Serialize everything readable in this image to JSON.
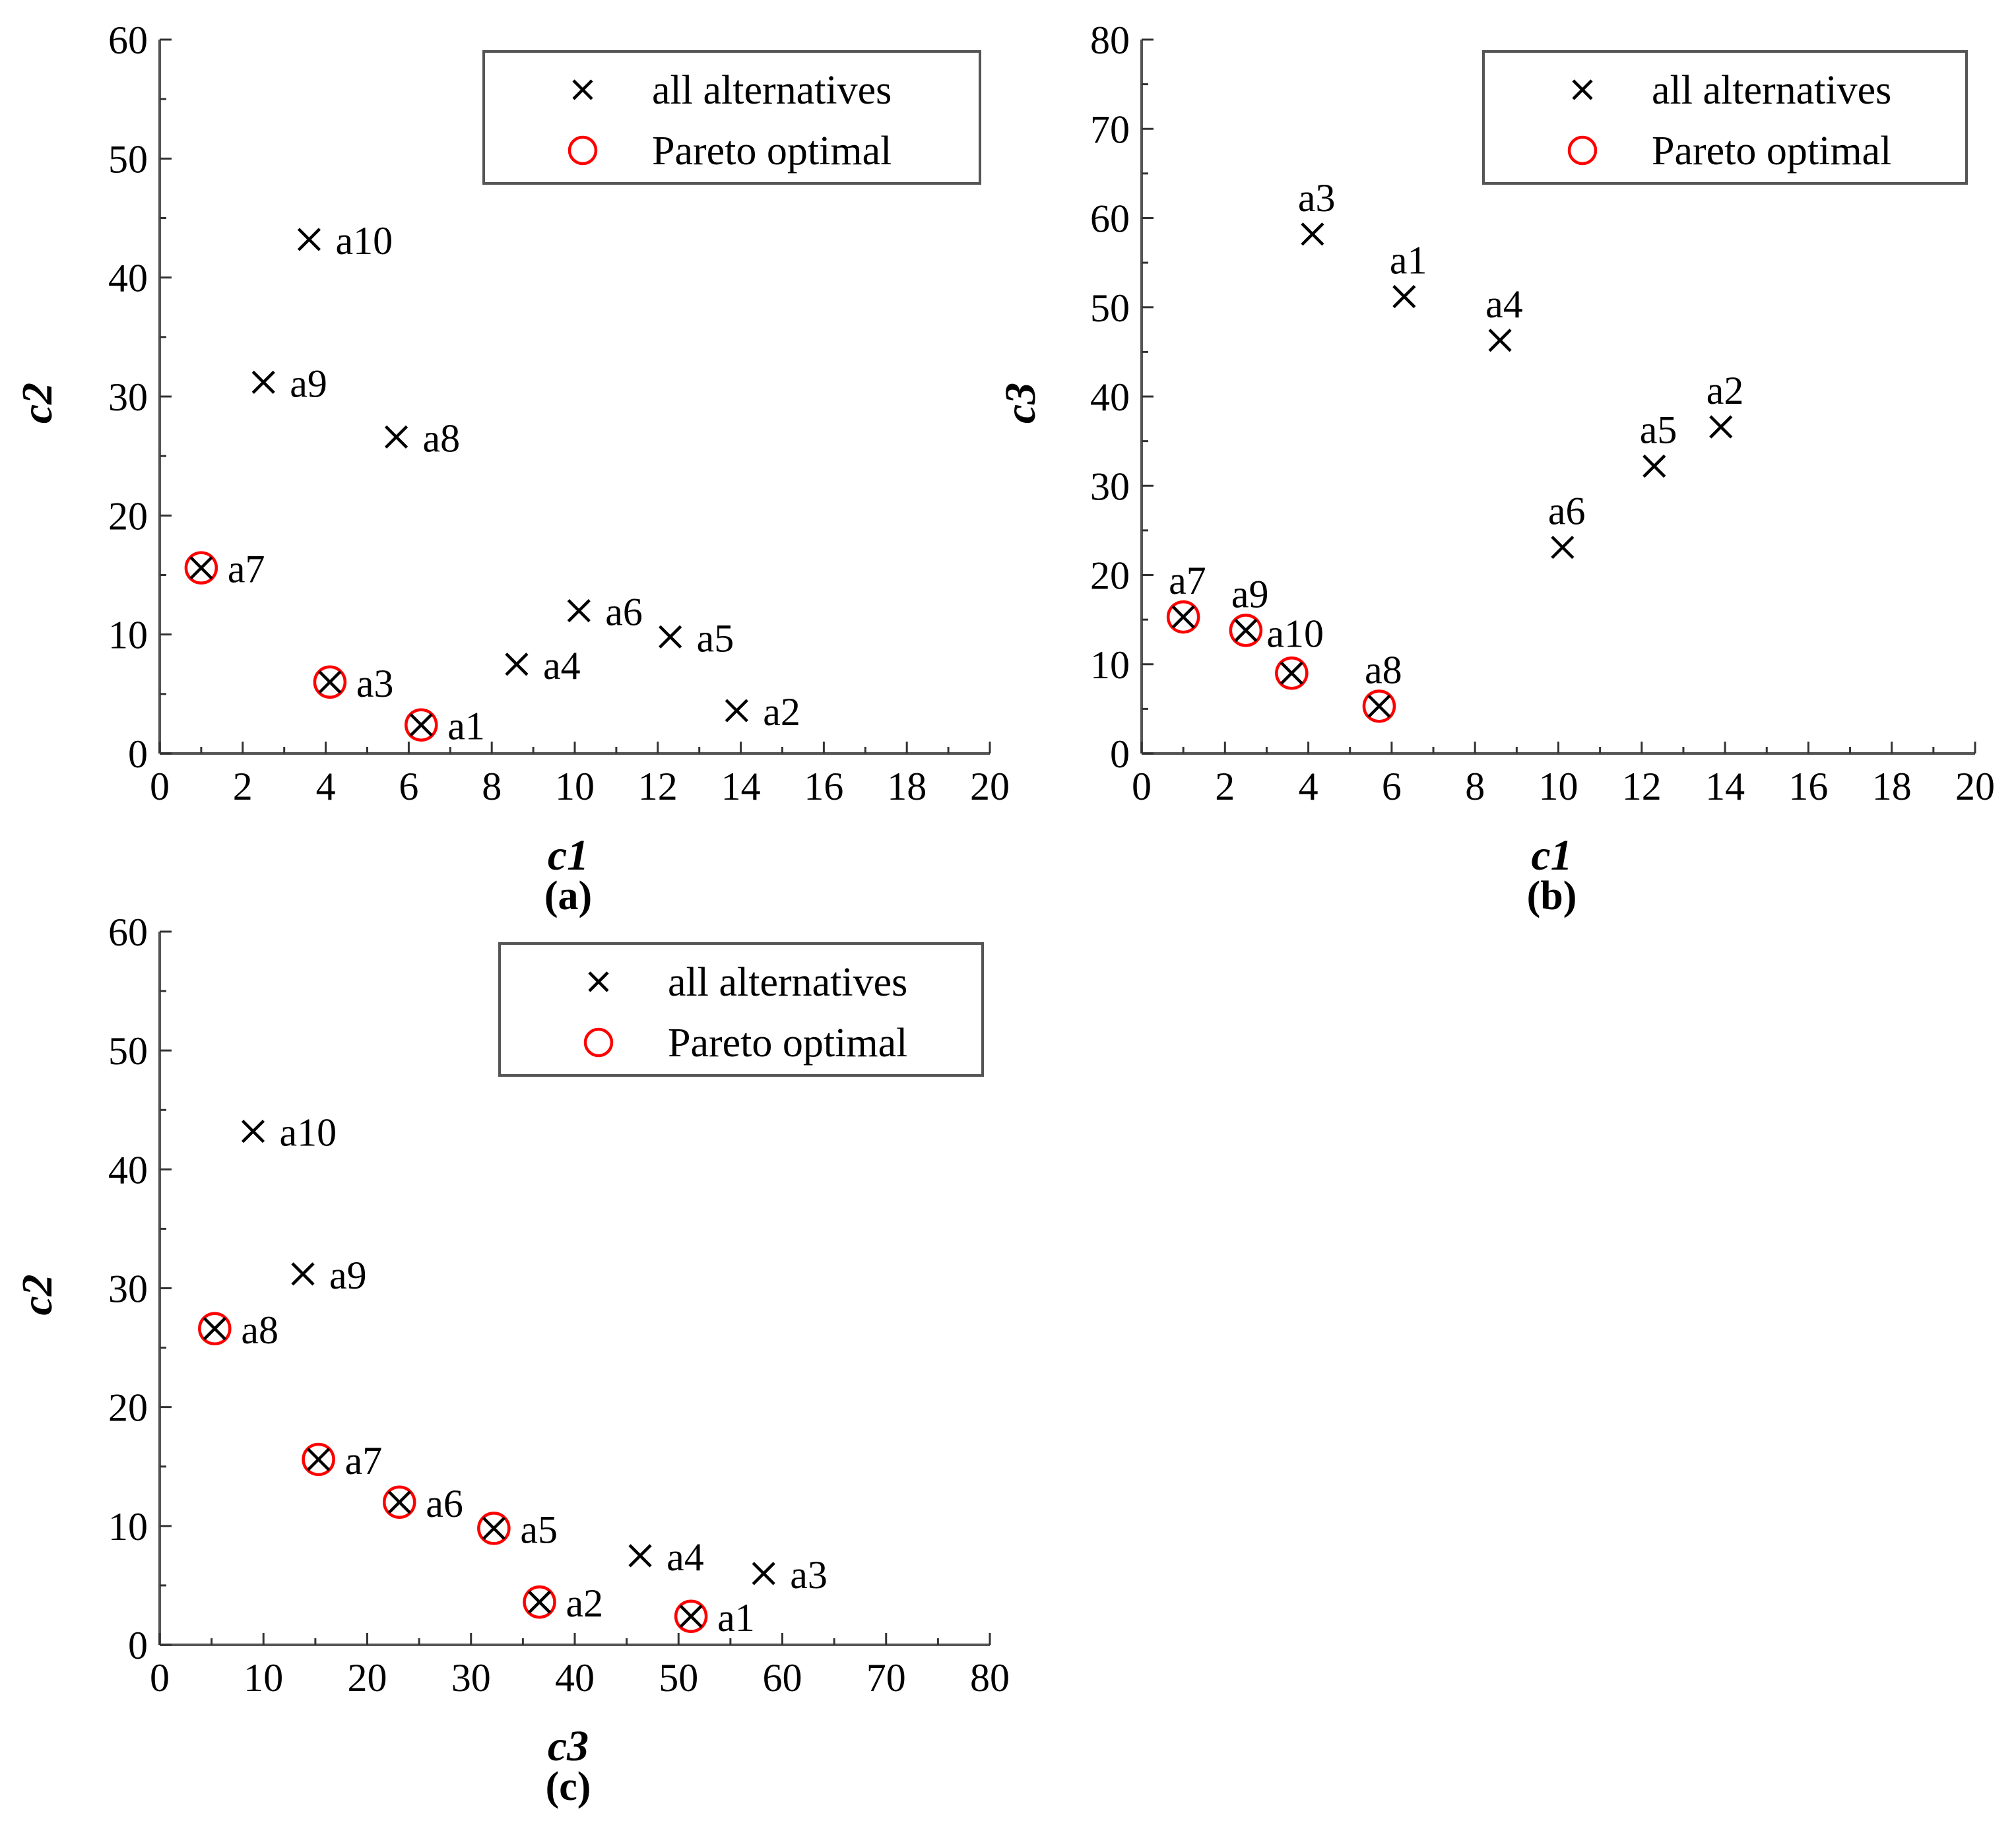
{
  "colors": {
    "cross": "#000000",
    "pareto": "#ff0000",
    "axis": "#555555"
  },
  "chart_data": [
    {
      "type": "scatter",
      "panel_label": "(a)",
      "xlabel": "c1",
      "ylabel": "c2",
      "xlim": [
        0,
        20
      ],
      "ylim": [
        0,
        60
      ],
      "xticks": [
        "0",
        "2",
        "4",
        "6",
        "8",
        "10",
        "12",
        "14",
        "16",
        "18",
        "20"
      ],
      "yticks": [
        "0",
        "10",
        "20",
        "30",
        "40",
        "50",
        "60"
      ],
      "legend": {
        "position": "top-right",
        "entries": [
          "all alternatives",
          "Pareto optimal"
        ]
      },
      "series": [
        {
          "name": "all alternatives",
          "points": [
            {
              "label": "a1",
              "x": 6.3,
              "y": 2.4
            },
            {
              "label": "a2",
              "x": 13.9,
              "y": 3.6
            },
            {
              "label": "a3",
              "x": 4.1,
              "y": 6.0
            },
            {
              "label": "a4",
              "x": 8.6,
              "y": 7.5
            },
            {
              "label": "a5",
              "x": 12.3,
              "y": 9.8
            },
            {
              "label": "a6",
              "x": 10.1,
              "y": 12.0
            },
            {
              "label": "a7",
              "x": 1.0,
              "y": 15.6
            },
            {
              "label": "a8",
              "x": 5.7,
              "y": 26.6
            },
            {
              "label": "a9",
              "x": 2.5,
              "y": 31.2
            },
            {
              "label": "a10",
              "x": 3.6,
              "y": 43.2
            }
          ]
        },
        {
          "name": "Pareto optimal",
          "points": [
            {
              "label": "a1",
              "x": 6.3,
              "y": 2.4
            },
            {
              "label": "a3",
              "x": 4.1,
              "y": 6.0
            },
            {
              "label": "a7",
              "x": 1.0,
              "y": 15.6
            }
          ]
        }
      ]
    },
    {
      "type": "scatter",
      "panel_label": "(b)",
      "xlabel": "c1",
      "ylabel": "c3",
      "xlim": [
        0,
        20
      ],
      "ylim": [
        0,
        80
      ],
      "xticks": [
        "0",
        "2",
        "4",
        "6",
        "8",
        "10",
        "12",
        "14",
        "16",
        "18",
        "20"
      ],
      "yticks": [
        "0",
        "10",
        "20",
        "30",
        "40",
        "50",
        "60",
        "70",
        "80"
      ],
      "legend": {
        "position": "top-right",
        "entries": [
          "all alternatives",
          "Pareto optimal"
        ]
      },
      "series": [
        {
          "name": "all alternatives",
          "points": [
            {
              "label": "a1",
              "x": 6.3,
              "y": 51.2
            },
            {
              "label": "a2",
              "x": 13.9,
              "y": 36.6
            },
            {
              "label": "a3",
              "x": 4.1,
              "y": 58.2
            },
            {
              "label": "a4",
              "x": 8.6,
              "y": 46.3
            },
            {
              "label": "a5",
              "x": 12.3,
              "y": 32.2
            },
            {
              "label": "a6",
              "x": 10.1,
              "y": 23.1
            },
            {
              "label": "a7",
              "x": 1.0,
              "y": 15.3
            },
            {
              "label": "a8",
              "x": 5.7,
              "y": 5.3
            },
            {
              "label": "a9",
              "x": 2.5,
              "y": 13.8
            },
            {
              "label": "a10",
              "x": 3.6,
              "y": 9.0
            }
          ]
        },
        {
          "name": "Pareto optimal",
          "points": [
            {
              "label": "a7",
              "x": 1.0,
              "y": 15.3
            },
            {
              "label": "a9",
              "x": 2.5,
              "y": 13.8
            },
            {
              "label": "a10",
              "x": 3.6,
              "y": 9.0
            },
            {
              "label": "a8",
              "x": 5.7,
              "y": 5.3
            }
          ]
        }
      ]
    },
    {
      "type": "scatter",
      "panel_label": "(c)",
      "xlabel": "c3",
      "ylabel": "c2",
      "xlim": [
        0,
        80
      ],
      "ylim": [
        0,
        60
      ],
      "xticks": [
        "0",
        "10",
        "20",
        "30",
        "40",
        "50",
        "60",
        "70",
        "80"
      ],
      "yticks": [
        "0",
        "10",
        "20",
        "30",
        "40",
        "50",
        "60"
      ],
      "legend": {
        "position": "top-right",
        "entries": [
          "all alternatives",
          "Pareto optimal"
        ]
      },
      "series": [
        {
          "name": "all alternatives",
          "points": [
            {
              "label": "a1",
              "x": 51.2,
              "y": 2.4
            },
            {
              "label": "a2",
              "x": 36.6,
              "y": 3.6
            },
            {
              "label": "a3",
              "x": 58.2,
              "y": 6.0
            },
            {
              "label": "a4",
              "x": 46.3,
              "y": 7.5
            },
            {
              "label": "a5",
              "x": 32.2,
              "y": 9.8
            },
            {
              "label": "a6",
              "x": 23.1,
              "y": 12.0
            },
            {
              "label": "a7",
              "x": 15.3,
              "y": 15.6
            },
            {
              "label": "a8",
              "x": 5.3,
              "y": 26.6
            },
            {
              "label": "a9",
              "x": 13.8,
              "y": 31.2
            },
            {
              "label": "a10",
              "x": 9.0,
              "y": 43.2
            }
          ]
        },
        {
          "name": "Pareto optimal",
          "points": [
            {
              "label": "a1",
              "x": 51.2,
              "y": 2.4
            },
            {
              "label": "a2",
              "x": 36.6,
              "y": 3.6
            },
            {
              "label": "a5",
              "x": 32.2,
              "y": 9.8
            },
            {
              "label": "a6",
              "x": 23.1,
              "y": 12.0
            },
            {
              "label": "a7",
              "x": 15.3,
              "y": 15.6
            },
            {
              "label": "a8",
              "x": 5.3,
              "y": 26.6
            }
          ]
        }
      ]
    }
  ]
}
